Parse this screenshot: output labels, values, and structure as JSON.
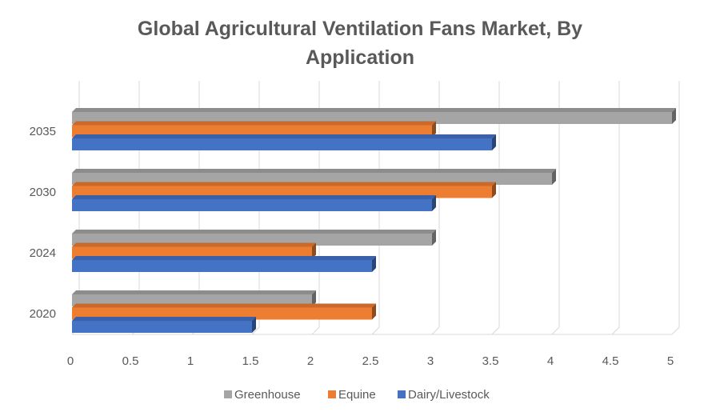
{
  "chart_data": {
    "type": "bar",
    "orientation": "horizontal",
    "title": "Global Agricultural Ventilation Fans Market, By Application",
    "categories": [
      "2020",
      "2024",
      "2030",
      "2035"
    ],
    "series": [
      {
        "name": "Greenhouse",
        "color": "#a5a5a5",
        "values": [
          2,
          3,
          4,
          5
        ]
      },
      {
        "name": "Equine",
        "color": "#ed7d31",
        "values": [
          2.5,
          2,
          3.5,
          3
        ]
      },
      {
        "name": "Dairy/Livestock",
        "color": "#4472c4",
        "values": [
          1.5,
          2.5,
          3,
          3.5
        ]
      }
    ],
    "xlim": [
      0,
      5
    ],
    "x_ticks": [
      "0",
      "0.5",
      "1",
      "1.5",
      "2",
      "2.5",
      "3",
      "3.5",
      "4",
      "4.5",
      "5"
    ],
    "grid": true,
    "legend_position": "bottom"
  }
}
